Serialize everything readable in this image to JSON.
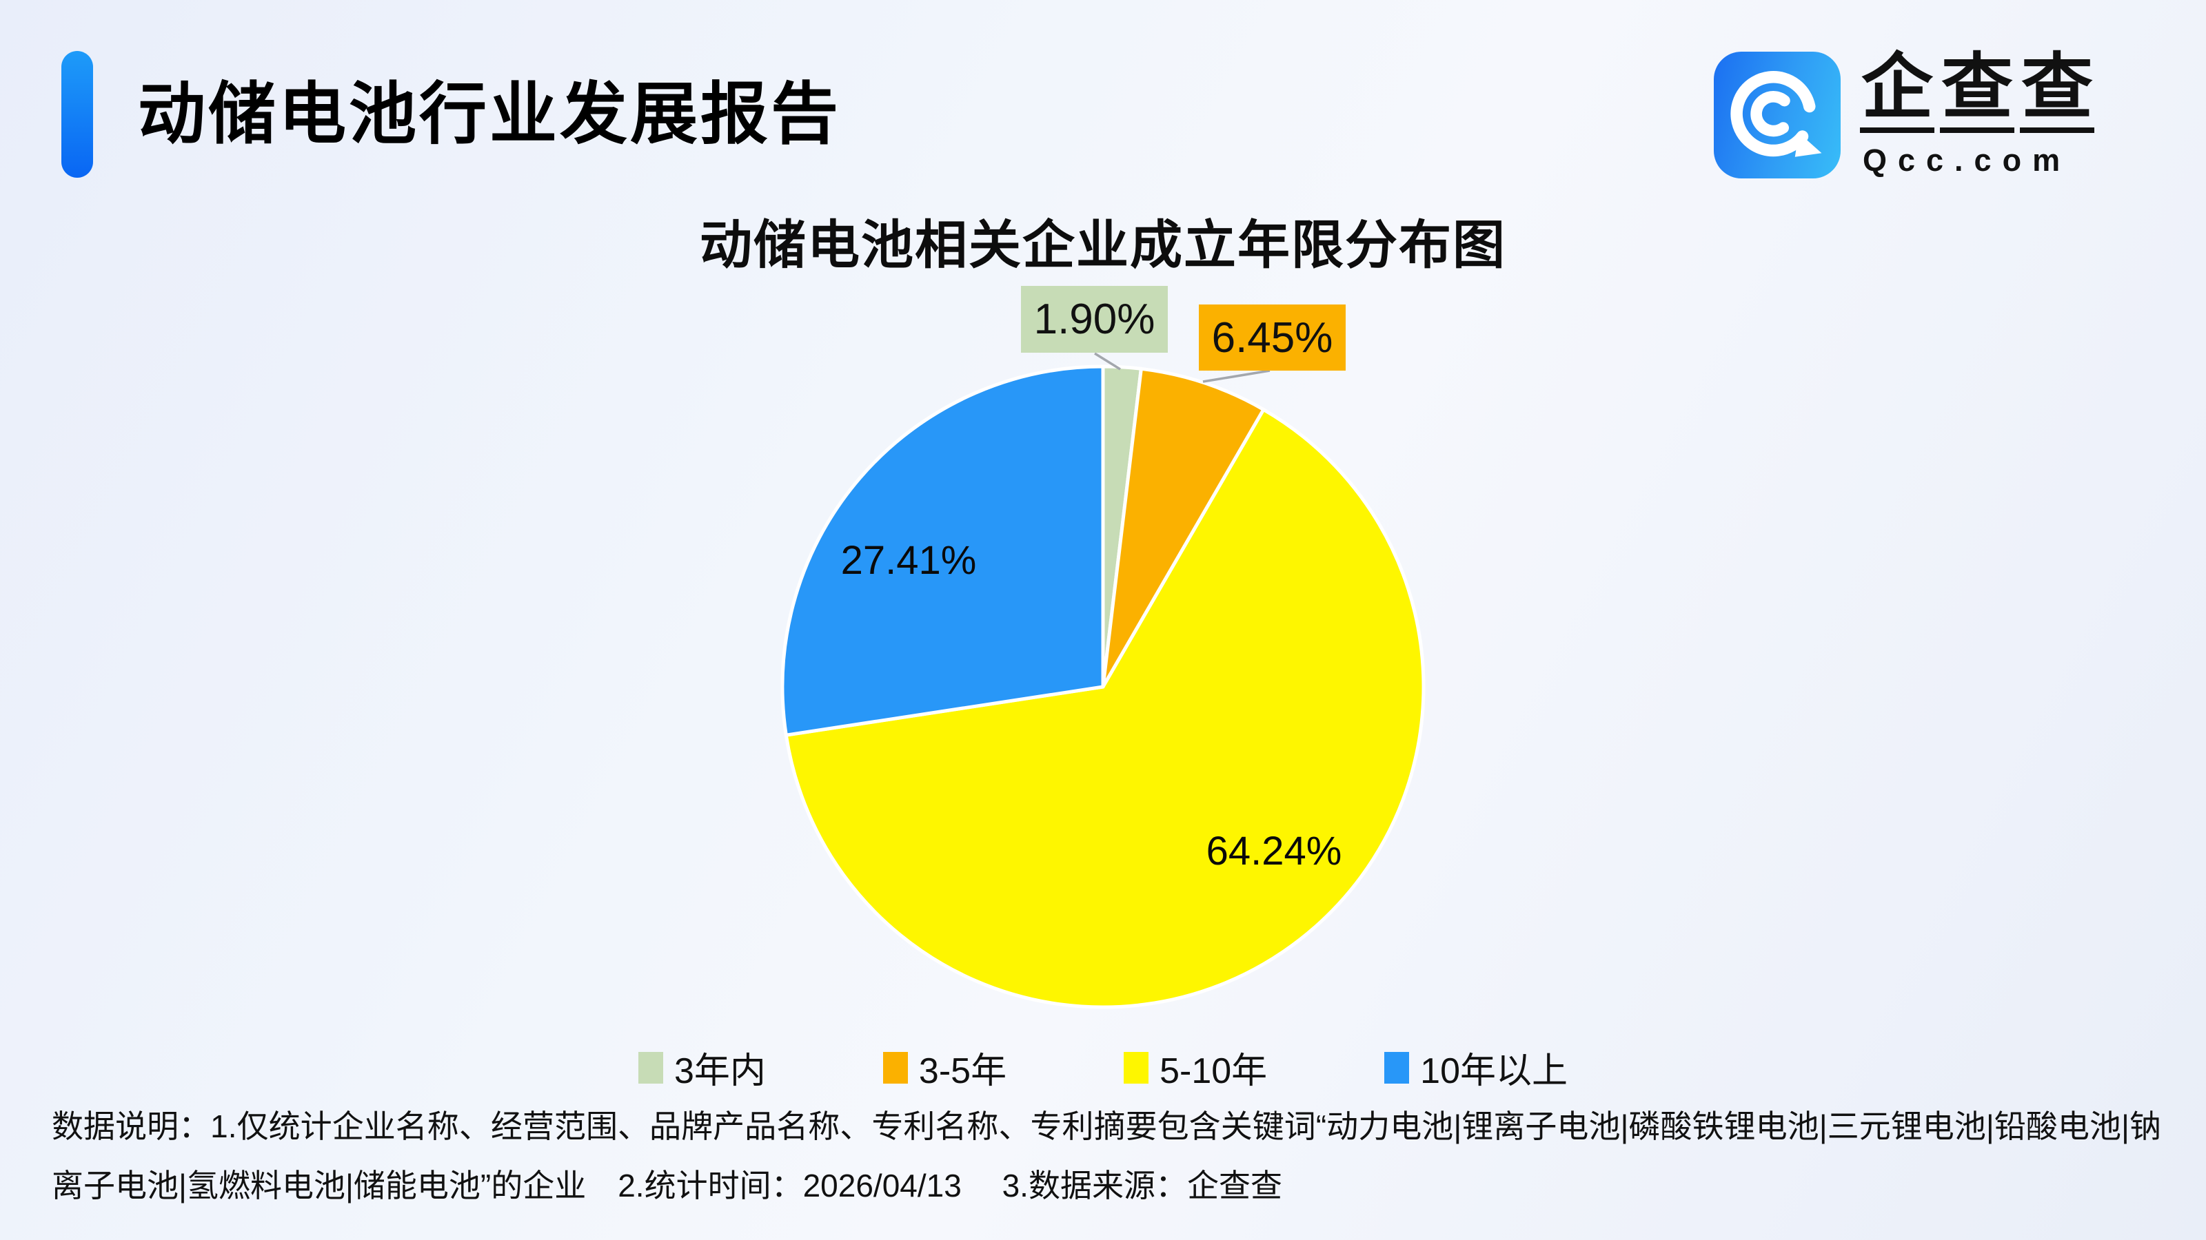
{
  "header": {
    "report_title": "动储电池行业发展报告"
  },
  "logo": {
    "icon": "qcc-magnifier-icon",
    "brand_chars": [
      "企",
      "查",
      "查"
    ],
    "domain": "Qcc.com"
  },
  "chart_data": {
    "type": "pie",
    "title": "动储电池相关企业成立年限分布图",
    "categories": [
      "3年内",
      "3-5年",
      "5-10年",
      "10年以上"
    ],
    "values": [
      1.9,
      6.45,
      64.24,
      27.41
    ],
    "value_labels": [
      "1.90%",
      "6.45%",
      "64.24%",
      "27.41%"
    ],
    "colors": [
      "#C7DCB6",
      "#FBB100",
      "#FEF600",
      "#2897F8"
    ],
    "start_angle_deg": -90,
    "direction": "clockwise",
    "legend_position": "bottom",
    "label_layout": {
      "3年内": "outside-callout",
      "3-5年": "outside-callout",
      "5-10年": "inside",
      "10年以上": "inside"
    }
  },
  "footer": {
    "note": "数据说明：1.仅统计企业名称、经营范围、品牌产品名称、专利名称、专利摘要包含关键词“动力电池|锂离子电池|磷酸铁锂电池|三元锂电池|铅酸电池|钠离子电池|氢燃料电池|储能电池”的企业　2.统计时间：2026/04/13　 3.数据来源：企查查"
  }
}
